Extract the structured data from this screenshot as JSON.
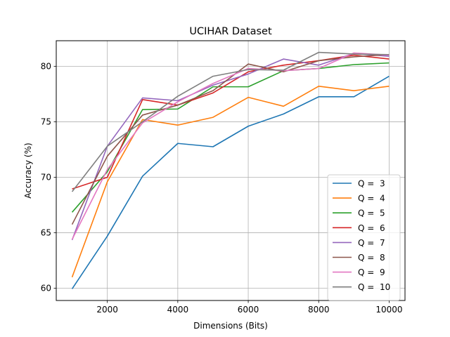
{
  "chart_data": {
    "type": "line",
    "title": "UCIHAR Dataset",
    "xlabel": "Dimensions (Bits)",
    "ylabel": "Accuracy (%)",
    "xlim": [
      550,
      10450
    ],
    "ylim": [
      58.9,
      82.3
    ],
    "xticks": [
      2000,
      4000,
      6000,
      8000,
      10000
    ],
    "yticks": [
      60,
      65,
      70,
      75,
      80
    ],
    "grid": true,
    "legend_position": "lower-right",
    "x": [
      1000,
      2000,
      3000,
      4000,
      5000,
      6000,
      7000,
      8000,
      9000,
      10000
    ],
    "series": [
      {
        "name": "Q =  3",
        "color": "#1f77b4",
        "values": [
          59.95,
          64.7,
          70.1,
          73.05,
          72.75,
          74.6,
          75.7,
          77.25,
          77.25,
          79.1
        ]
      },
      {
        "name": "Q =  4",
        "color": "#ff7f0e",
        "values": [
          61.0,
          69.6,
          75.2,
          74.7,
          75.4,
          77.2,
          76.4,
          78.2,
          77.8,
          78.2
        ]
      },
      {
        "name": "Q =  5",
        "color": "#2ca02c",
        "values": [
          66.85,
          70.5,
          76.1,
          76.15,
          78.15,
          78.15,
          79.6,
          79.8,
          80.15,
          80.3
        ]
      },
      {
        "name": "Q =  6",
        "color": "#d62728",
        "values": [
          68.95,
          70.0,
          77.0,
          76.5,
          77.6,
          79.5,
          80.1,
          80.5,
          81.0,
          80.65
        ]
      },
      {
        "name": "Q =  7",
        "color": "#9467bd",
        "values": [
          64.35,
          72.8,
          77.15,
          76.9,
          78.3,
          79.3,
          80.65,
          80.1,
          81.15,
          80.9
        ]
      },
      {
        "name": "Q =  8",
        "color": "#8c564b",
        "values": [
          65.75,
          71.9,
          75.6,
          76.5,
          77.8,
          80.2,
          79.5,
          80.5,
          80.85,
          81.05
        ]
      },
      {
        "name": "Q =  9",
        "color": "#e377c2",
        "values": [
          64.4,
          70.7,
          74.9,
          76.8,
          78.45,
          79.8,
          79.6,
          79.8,
          81.2,
          81.0
        ]
      },
      {
        "name": "Q =  10",
        "color": "#7f7f7f",
        "values": [
          68.7,
          72.8,
          75.0,
          77.3,
          79.1,
          79.7,
          79.65,
          81.25,
          81.1,
          81.05
        ]
      }
    ]
  }
}
